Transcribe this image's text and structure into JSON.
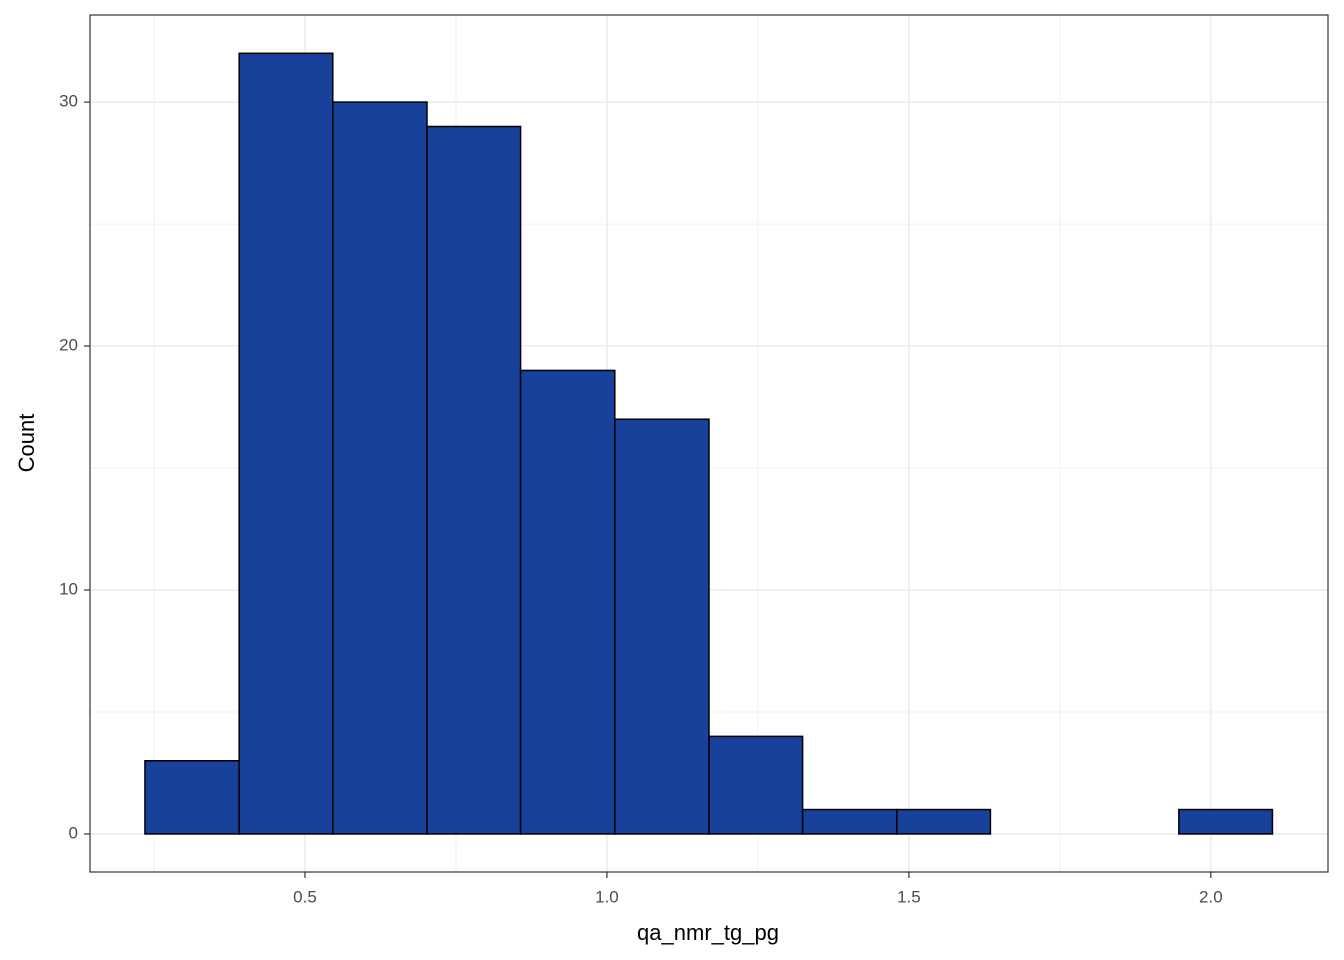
{
  "chart_data": {
    "type": "histogram",
    "x_label": "qa_nmr_tg_pg",
    "y_label": "Count",
    "bins": [
      0.235,
      0.391,
      0.546,
      0.702,
      0.857,
      1.013,
      1.169,
      1.324,
      1.48,
      1.635,
      1.791,
      1.947,
      2.102
    ],
    "counts": [
      3,
      32,
      30,
      29,
      19,
      17,
      4,
      1,
      1,
      0,
      0,
      1
    ],
    "color": "#17419a",
    "edgecolor": "#000000",
    "xlim": [
      0.144,
      2.194
    ],
    "ylim": [
      -1.56,
      33.57
    ],
    "xticks": [
      0.5,
      {
        "value": 1.0,
        "label": "1.0"
      },
      1.5,
      {
        "value": 2.0,
        "label": "2.0"
      }
    ],
    "yticks": [
      0,
      10,
      20,
      30
    ],
    "xminor": [
      0.25,
      0.75,
      1.25,
      1.75
    ],
    "yminor": [
      5,
      15,
      25
    ],
    "grid": true
  }
}
